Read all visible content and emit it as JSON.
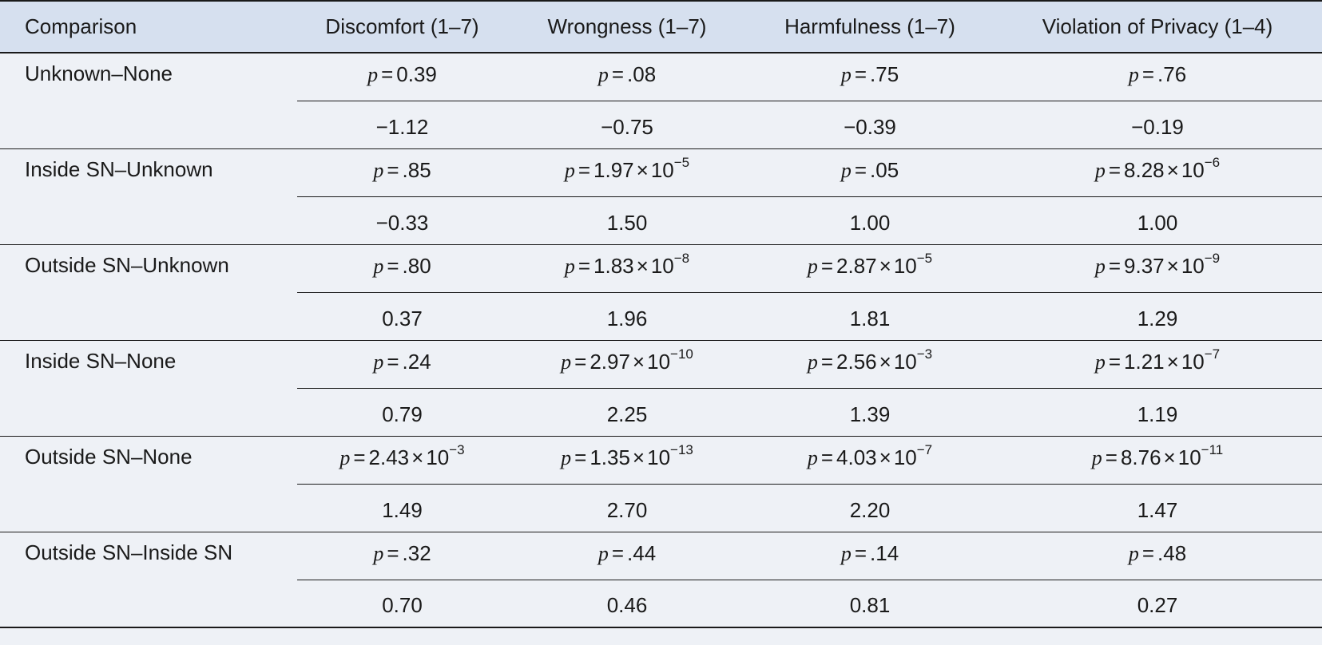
{
  "table": {
    "headers": [
      "Comparison",
      "Discomfort (1–7)",
      "Wrongness (1–7)",
      "Harmfulness (1–7)",
      "Violation of Privacy (1–4)"
    ],
    "rows": [
      {
        "comparison": "Unknown–None",
        "p": [
          {
            "mantissa": "0.39",
            "exp": ""
          },
          {
            "mantissa": ".08",
            "exp": ""
          },
          {
            "mantissa": ".75",
            "exp": ""
          },
          {
            "mantissa": ".76",
            "exp": ""
          }
        ],
        "d": [
          "−1.12",
          "−0.75",
          "−0.39",
          "−0.19"
        ]
      },
      {
        "comparison": "Inside SN–Unknown",
        "p": [
          {
            "mantissa": ".85",
            "exp": ""
          },
          {
            "mantissa": "1.97",
            "exp": "−5"
          },
          {
            "mantissa": ".05",
            "exp": ""
          },
          {
            "mantissa": "8.28",
            "exp": "−6"
          }
        ],
        "d": [
          "−0.33",
          "1.50",
          "1.00",
          "1.00"
        ]
      },
      {
        "comparison": "Outside SN–Unknown",
        "p": [
          {
            "mantissa": ".80",
            "exp": ""
          },
          {
            "mantissa": "1.83",
            "exp": "−8"
          },
          {
            "mantissa": "2.87",
            "exp": "−5"
          },
          {
            "mantissa": "9.37",
            "exp": "−9"
          }
        ],
        "d": [
          "0.37",
          "1.96",
          "1.81",
          "1.29"
        ]
      },
      {
        "comparison": "Inside SN–None",
        "p": [
          {
            "mantissa": ".24",
            "exp": ""
          },
          {
            "mantissa": "2.97",
            "exp": "−10"
          },
          {
            "mantissa": "2.56",
            "exp": "−3"
          },
          {
            "mantissa": "1.21",
            "exp": "−7"
          }
        ],
        "d": [
          "0.79",
          "2.25",
          "1.39",
          "1.19"
        ]
      },
      {
        "comparison": "Outside SN–None",
        "p": [
          {
            "mantissa": "2.43",
            "exp": "−3"
          },
          {
            "mantissa": "1.35",
            "exp": "−13"
          },
          {
            "mantissa": "4.03",
            "exp": "−7"
          },
          {
            "mantissa": "8.76",
            "exp": "−11"
          }
        ],
        "d": [
          "1.49",
          "2.70",
          "2.20",
          "1.47"
        ]
      },
      {
        "comparison": "Outside SN–Inside SN",
        "p": [
          {
            "mantissa": ".32",
            "exp": ""
          },
          {
            "mantissa": ".44",
            "exp": ""
          },
          {
            "mantissa": ".14",
            "exp": ""
          },
          {
            "mantissa": ".48",
            "exp": ""
          }
        ],
        "d": [
          "0.70",
          "0.46",
          "0.81",
          "0.27"
        ]
      }
    ],
    "p_symbol": "p",
    "eq_symbol": "=",
    "times_symbol": "×",
    "base_ten": "10"
  }
}
